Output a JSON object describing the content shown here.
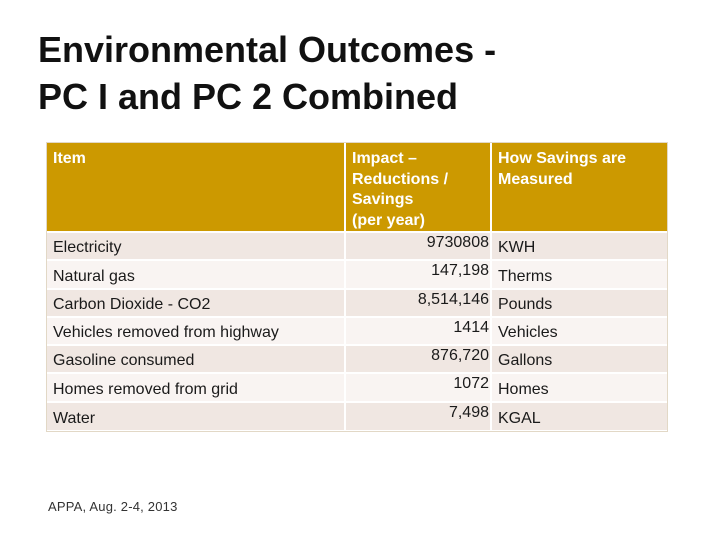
{
  "title": {
    "line1": "Environmental Outcomes -",
    "line2": "PC I and PC 2 Combined"
  },
  "table": {
    "headers": {
      "item": "Item",
      "impact_line1": "Impact –",
      "impact_line2": "Reductions /",
      "impact_line3": "Savings",
      "impact_line4": "(per year)",
      "measure_line1": "How Savings are",
      "measure_line2": "Measured"
    },
    "rows": [
      {
        "item": "Electricity",
        "impact": "9730808",
        "unit": "KWH"
      },
      {
        "item": "Natural gas",
        "impact": "147,198",
        "unit": "Therms"
      },
      {
        "item": "Carbon Dioxide - CO2",
        "impact": "8,514,146",
        "unit": "Pounds"
      },
      {
        "item": "Vehicles removed from highway",
        "impact": "1414",
        "unit": "Vehicles"
      },
      {
        "item": "Gasoline consumed",
        "impact": "876,720",
        "unit": "Gallons"
      },
      {
        "item": "Homes removed from grid",
        "impact": "1072",
        "unit": "Homes"
      },
      {
        "item": "Water",
        "impact": "7,498",
        "unit": "KGAL"
      }
    ]
  },
  "footer": {
    "text": "APPA, Aug. 2-4, 2013"
  },
  "colors": {
    "header_bg": "#cc9900",
    "row_odd": "#f0e7e2",
    "row_even": "#f9f4f2"
  }
}
